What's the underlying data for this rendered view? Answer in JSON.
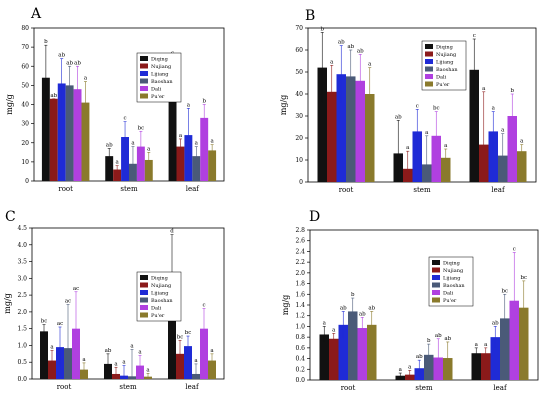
{
  "colors": {
    "Diqing": "#111111",
    "Nujiang": "#8b1a1a",
    "Lijiang": "#1f2bd6",
    "Baoshan": "#4a5a78",
    "Dali": "#b040e0",
    "Pu'er": "#8a7a2c"
  },
  "chart_data": [
    {
      "panel": "A",
      "type": "bar",
      "ylabel": "mg/g",
      "categories": [
        "root",
        "stem",
        "leaf"
      ],
      "ylim": [
        0,
        80
      ],
      "yticks": [
        0,
        10,
        20,
        30,
        40,
        50,
        60,
        70,
        80
      ],
      "tick_labels": [
        "0",
        "10",
        "20",
        "30",
        "40",
        "50",
        "60",
        "70",
        "80"
      ],
      "series": [
        {
          "name": "Diqing",
          "values": [
            54,
            13,
            54
          ],
          "errors": [
            17,
            4,
            11
          ]
        },
        {
          "name": "Nujiang",
          "values": [
            43,
            6,
            18
          ],
          "errors": [
            0,
            2,
            4
          ]
        },
        {
          "name": "Lijiang",
          "values": [
            51,
            23,
            24
          ],
          "errors": [
            13,
            8,
            14
          ]
        },
        {
          "name": "Baoshan",
          "values": [
            50,
            9,
            13
          ],
          "errors": [
            10,
            9,
            5
          ]
        },
        {
          "name": "Dali",
          "values": [
            48,
            18,
            33
          ],
          "errors": [
            12,
            8,
            7
          ]
        },
        {
          "name": "Pu'er",
          "values": [
            41,
            11,
            16
          ],
          "errors": [
            11,
            4,
            3
          ]
        }
      ],
      "letters": [
        [
          "b",
          "ab",
          "ab",
          "ab",
          "ab",
          "a"
        ],
        [
          "ab",
          "a",
          "c",
          "a",
          "bc",
          "a"
        ],
        [
          "c",
          "a",
          "a",
          "a",
          "b",
          "a"
        ]
      ]
    },
    {
      "panel": "B",
      "type": "bar",
      "ylabel": "mg/g",
      "categories": [
        "root",
        "stem",
        "leaf"
      ],
      "ylim": [
        0,
        70
      ],
      "yticks": [
        0,
        10,
        20,
        30,
        40,
        50,
        60,
        70
      ],
      "tick_labels": [
        "0",
        "10",
        "20",
        "30",
        "40",
        "50",
        "60",
        "70"
      ],
      "series": [
        {
          "name": "Diqing",
          "values": [
            52,
            13,
            51
          ],
          "errors": [
            16,
            15,
            14
          ]
        },
        {
          "name": "Nujiang",
          "values": [
            41,
            6,
            17
          ],
          "errors": [
            12,
            8,
            24
          ]
        },
        {
          "name": "Lijiang",
          "values": [
            49,
            23,
            23
          ],
          "errors": [
            13,
            10,
            9
          ]
        },
        {
          "name": "Baoshan",
          "values": [
            48,
            8,
            12
          ],
          "errors": [
            12,
            13,
            10
          ]
        },
        {
          "name": "Dali",
          "values": [
            46,
            21,
            30
          ],
          "errors": [
            12,
            11,
            10
          ]
        },
        {
          "name": "Pu'er",
          "values": [
            40,
            11,
            14
          ],
          "errors": [
            12,
            4,
            3
          ]
        }
      ],
      "letters": [
        [
          "b",
          "a",
          "ab",
          "ab",
          "ab",
          "a"
        ],
        [
          "ab",
          "a",
          "c",
          "a",
          "bc",
          "a"
        ],
        [
          "c",
          "a",
          "a",
          "a",
          "b",
          "a"
        ]
      ]
    },
    {
      "panel": "C",
      "type": "bar",
      "ylabel": "mg/g",
      "categories": [
        "root",
        "stem",
        "leaf"
      ],
      "ylim": [
        0,
        4.5
      ],
      "yticks": [
        0.0,
        0.5,
        1.0,
        1.5,
        2.0,
        2.5,
        3.0,
        3.5,
        4.0,
        4.5
      ],
      "tick_labels": [
        "0.0",
        "0.5",
        "1.0",
        "1.5",
        "2.0",
        "2.5",
        "3.0",
        "3.5",
        "4.0",
        "4.5"
      ],
      "series": [
        {
          "name": "Diqing",
          "values": [
            1.42,
            0.45,
            2.9
          ],
          "errors": [
            0.2,
            0.3,
            1.4
          ]
        },
        {
          "name": "Nujiang",
          "values": [
            0.55,
            0.15,
            0.75
          ],
          "errors": [
            0.3,
            0.2,
            0.4
          ]
        },
        {
          "name": "Lijiang",
          "values": [
            0.95,
            0.1,
            0.98
          ],
          "errors": [
            0.6,
            0.3,
            0.3
          ]
        },
        {
          "name": "Baoshan",
          "values": [
            0.92,
            0.08,
            0.15
          ],
          "errors": [
            1.3,
            0.8,
            0.3
          ]
        },
        {
          "name": "Dali",
          "values": [
            1.5,
            0.4,
            1.5
          ],
          "errors": [
            1.1,
            0.3,
            0.6
          ]
        },
        {
          "name": "Pu'er",
          "values": [
            0.28,
            0.07,
            0.55
          ],
          "errors": [
            0.2,
            0.1,
            0.2
          ]
        }
      ],
      "letters": [
        [
          "bc",
          "a",
          "ac",
          "ac",
          "ac",
          "a"
        ],
        [
          "ab",
          "a",
          "a",
          "a",
          "a",
          "a"
        ],
        [
          "d",
          "bc",
          "bc",
          "a",
          "c",
          "a"
        ]
      ]
    },
    {
      "panel": "D",
      "type": "bar",
      "ylabel": "mg/g",
      "categories": [
        "root",
        "stem",
        "leaf"
      ],
      "ylim": [
        0,
        2.8
      ],
      "yticks": [
        0.0,
        0.2,
        0.4,
        0.6,
        0.8,
        1.0,
        1.2,
        1.4,
        1.6,
        1.8,
        2.0,
        2.2,
        2.4,
        2.6,
        2.8
      ],
      "tick_labels": [
        "0.0",
        "0.2",
        "0.4",
        "0.6",
        "0.8",
        "1.0",
        "1.2",
        "1.4",
        "1.6",
        "1.8",
        "2.0",
        "2.2",
        "2.4",
        "2.6",
        "2.8"
      ],
      "series": [
        {
          "name": "Diqing",
          "values": [
            0.85,
            0.08,
            0.5
          ],
          "errors": [
            0.15,
            0.05,
            0.1
          ]
        },
        {
          "name": "Nujiang",
          "values": [
            0.77,
            0.1,
            0.5
          ],
          "errors": [
            0.1,
            0.08,
            0.1
          ]
        },
        {
          "name": "Lijiang",
          "values": [
            1.03,
            0.22,
            0.8
          ],
          "errors": [
            0.25,
            0.15,
            0.2
          ]
        },
        {
          "name": "Baoshan",
          "values": [
            1.28,
            0.47,
            1.15
          ],
          "errors": [
            0.25,
            0.2,
            0.45
          ]
        },
        {
          "name": "Dali",
          "values": [
            0.97,
            0.42,
            1.48
          ],
          "errors": [
            0.2,
            0.35,
            0.9
          ]
        },
        {
          "name": "Pu'er",
          "values": [
            1.03,
            0.41,
            1.35
          ],
          "errors": [
            0.25,
            0.3,
            0.5
          ]
        }
      ],
      "letters": [
        [
          "a",
          "a",
          "ab",
          "b",
          "ab",
          "ab"
        ],
        [
          "a",
          "a",
          "ab",
          "b",
          "ab",
          "ab"
        ],
        [
          "a",
          "a",
          "ab",
          "bc",
          "c",
          "bc"
        ]
      ]
    }
  ]
}
